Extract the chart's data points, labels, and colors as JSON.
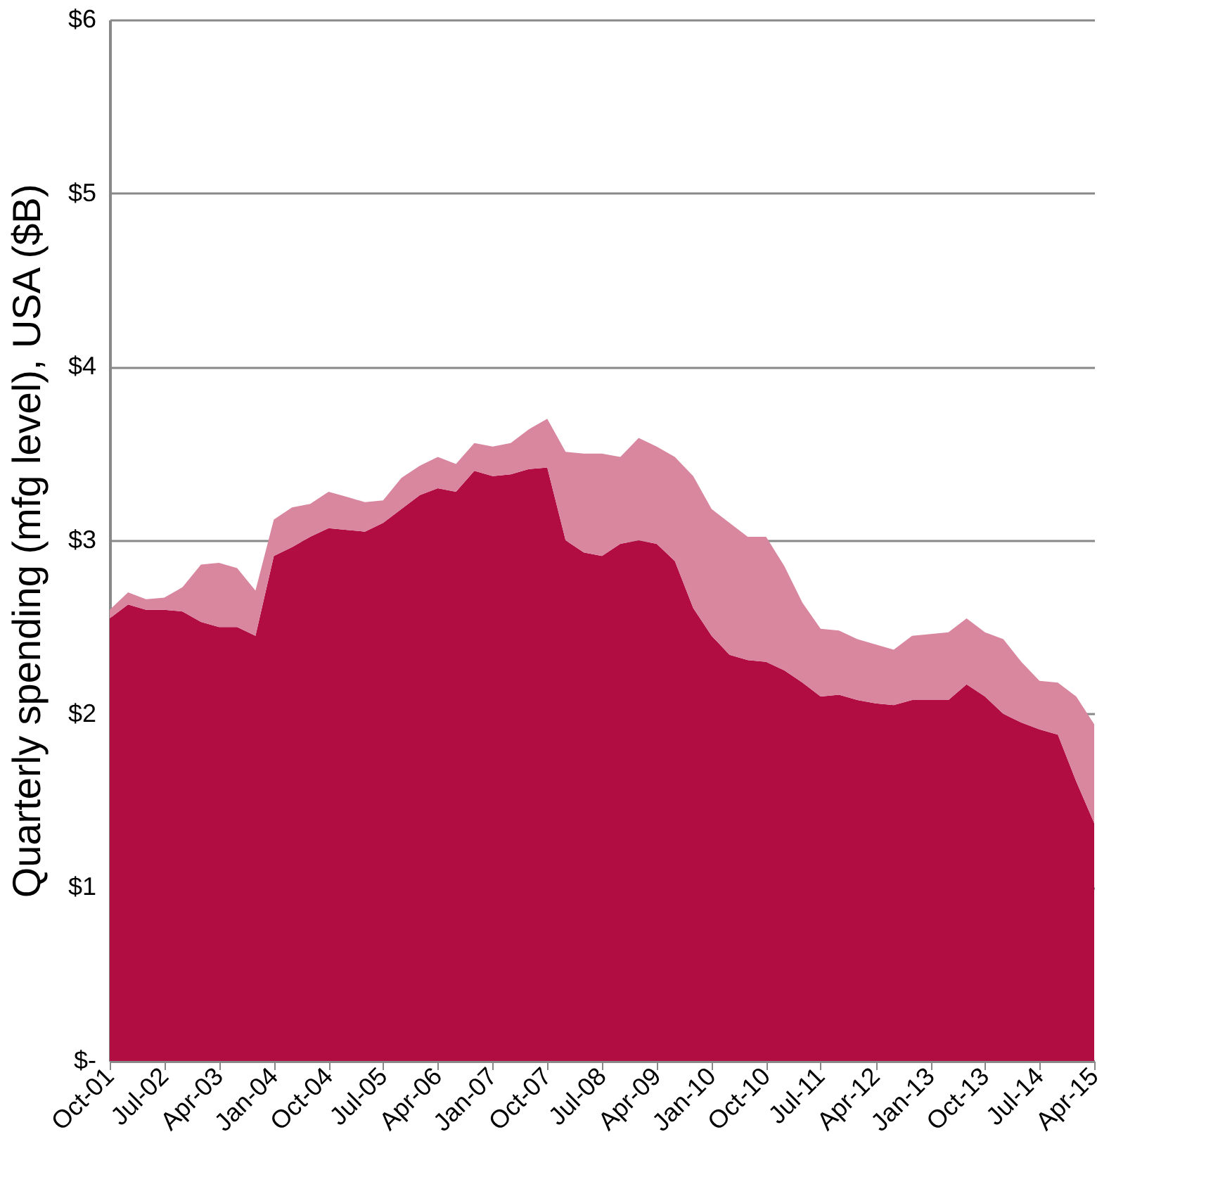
{
  "chart_data": {
    "type": "area",
    "stacked": true,
    "ylabel": "Quarterly spending (mfg level), USA ($B)",
    "x": [
      "2001-10",
      "2002-01",
      "2002-04",
      "2002-07",
      "2002-10",
      "2003-01",
      "2003-04",
      "2003-07",
      "2003-10",
      "2004-01",
      "2004-04",
      "2004-07",
      "2004-10",
      "2005-01",
      "2005-04",
      "2005-07",
      "2005-10",
      "2006-01",
      "2006-04",
      "2006-07",
      "2006-10",
      "2007-01",
      "2007-04",
      "2007-07",
      "2007-10",
      "2008-01",
      "2008-04",
      "2008-07",
      "2008-10",
      "2009-01",
      "2009-04",
      "2009-07",
      "2009-10",
      "2010-01",
      "2010-04",
      "2010-07",
      "2010-10",
      "2011-01",
      "2011-04",
      "2011-07",
      "2011-10",
      "2012-01",
      "2012-04",
      "2012-07",
      "2012-10",
      "2013-01",
      "2013-04",
      "2013-07",
      "2013-10",
      "2014-01",
      "2014-04",
      "2014-07",
      "2014-10",
      "2015-01",
      "2015-04"
    ],
    "series": [
      {
        "color": "#b20d42",
        "values": [
          2.55,
          2.63,
          2.6,
          2.6,
          2.59,
          2.53,
          2.5,
          2.5,
          2.45,
          2.91,
          2.96,
          3.02,
          3.07,
          3.06,
          3.05,
          3.1,
          3.18,
          3.26,
          3.3,
          3.28,
          3.4,
          3.37,
          3.38,
          3.41,
          3.42,
          3.0,
          2.93,
          2.91,
          2.98,
          3.0,
          2.98,
          2.88,
          2.61,
          2.45,
          2.34,
          2.31,
          2.3,
          2.25,
          2.18,
          2.1,
          2.11,
          2.08,
          2.06,
          2.05,
          2.08,
          2.08,
          2.08,
          2.17,
          2.1,
          2.0,
          1.95,
          1.91,
          1.88,
          1.61,
          1.37
        ]
      },
      {
        "color": "#d9869f",
        "values": [
          0.05,
          0.07,
          0.06,
          0.07,
          0.14,
          0.33,
          0.37,
          0.34,
          0.26,
          0.21,
          0.23,
          0.19,
          0.21,
          0.19,
          0.17,
          0.13,
          0.18,
          0.17,
          0.18,
          0.16,
          0.16,
          0.17,
          0.18,
          0.23,
          0.28,
          0.51,
          0.57,
          0.59,
          0.5,
          0.59,
          0.56,
          0.6,
          0.76,
          0.73,
          0.76,
          0.71,
          0.72,
          0.6,
          0.46,
          0.39,
          0.37,
          0.35,
          0.34,
          0.32,
          0.37,
          0.38,
          0.39,
          0.38,
          0.37,
          0.43,
          0.35,
          0.28,
          0.3,
          0.49,
          0.57
        ]
      }
    ],
    "xlim": [
      "2001-10",
      "2015-04"
    ],
    "xticks": [
      {
        "value": "2001-10",
        "label": "Oct-01"
      },
      {
        "value": "2002-07",
        "label": "Jul-02"
      },
      {
        "value": "2003-04",
        "label": "Apr-03"
      },
      {
        "value": "2004-01",
        "label": "Jan-04"
      },
      {
        "value": "2004-10",
        "label": "Oct-04"
      },
      {
        "value": "2005-07",
        "label": "Jul-05"
      },
      {
        "value": "2006-04",
        "label": "Apr-06"
      },
      {
        "value": "2007-01",
        "label": "Jan-07"
      },
      {
        "value": "2007-10",
        "label": "Oct-07"
      },
      {
        "value": "2008-07",
        "label": "Jul-08"
      },
      {
        "value": "2009-04",
        "label": "Apr-09"
      },
      {
        "value": "2010-01",
        "label": "Jan-10"
      },
      {
        "value": "2010-10",
        "label": "Oct-10"
      },
      {
        "value": "2011-07",
        "label": "Jul-11"
      },
      {
        "value": "2012-04",
        "label": "Apr-12"
      },
      {
        "value": "2013-01",
        "label": "Jan-13"
      },
      {
        "value": "2013-10",
        "label": "Oct-13"
      },
      {
        "value": "2014-07",
        "label": "Jul-14"
      },
      {
        "value": "2015-04",
        "label": "Apr-15"
      }
    ],
    "ylim": [
      0,
      6
    ],
    "yticks": [
      {
        "value": 0,
        "label": "$-"
      },
      {
        "value": 1,
        "label": "$1"
      },
      {
        "value": 2,
        "label": "$2"
      },
      {
        "value": 3,
        "label": "$3"
      },
      {
        "value": 4,
        "label": "$4"
      },
      {
        "value": 5,
        "label": "$5"
      },
      {
        "value": 6,
        "label": "$6"
      }
    ],
    "grid": "y",
    "legend": false
  }
}
